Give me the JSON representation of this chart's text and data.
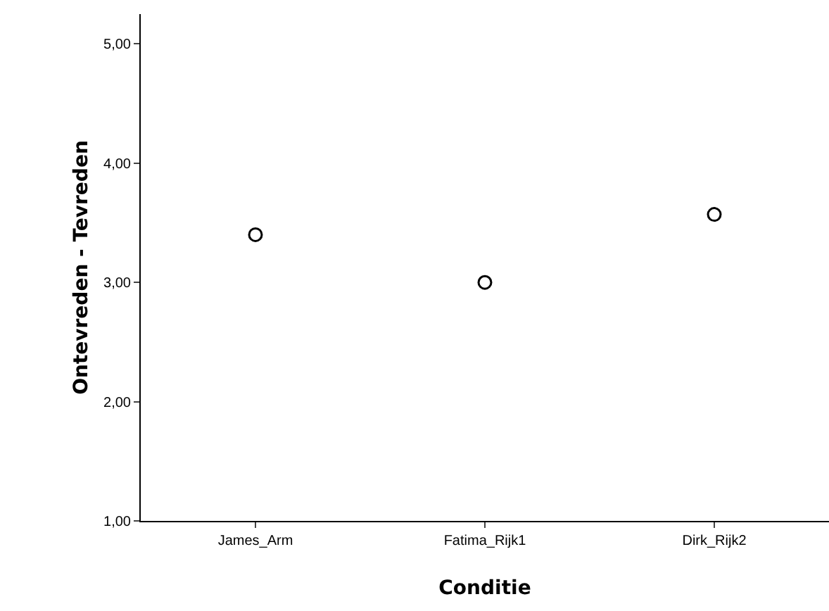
{
  "chart_data": {
    "type": "scatter",
    "xlabel": "Conditie",
    "ylabel": "Ontevreden - Tevreden",
    "categories": [
      "James_Arm",
      "Fatima_Rijk1",
      "Dirk_Rijk2"
    ],
    "values": [
      3.4,
      3.0,
      3.57
    ],
    "color": "#000000",
    "marker": "circle",
    "ylim": [
      1,
      5.25
    ],
    "yticks": [
      {
        "value": 1,
        "label": "1,00"
      },
      {
        "value": 2,
        "label": "2,00"
      },
      {
        "value": 3,
        "label": "3,00"
      },
      {
        "value": 4,
        "label": "4,00"
      },
      {
        "value": 5,
        "label": "5,00"
      }
    ],
    "grid": false,
    "legend": false
  }
}
